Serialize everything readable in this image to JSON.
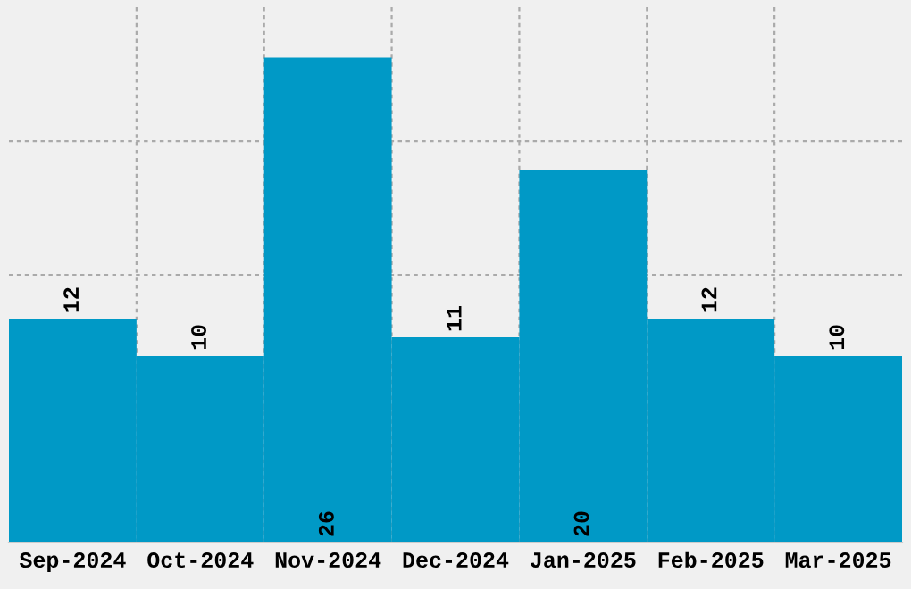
{
  "chart_data": {
    "type": "bar",
    "categories": [
      "Sep-2024",
      "Oct-2024",
      "Nov-2024",
      "Dec-2024",
      "Jan-2025",
      "Feb-2025",
      "Mar-2025"
    ],
    "values": [
      12,
      10,
      26,
      11,
      20,
      12,
      10
    ],
    "color": "#0099c6",
    "ylim": [
      0,
      28.7
    ],
    "yticks": [
      {
        "value": 7.17,
        "label": null
      },
      {
        "value": 14.35,
        "label": null
      },
      {
        "value": 21.52,
        "label": null
      }
    ],
    "tick_labels": "x",
    "grid": true,
    "data_labels": true
  }
}
